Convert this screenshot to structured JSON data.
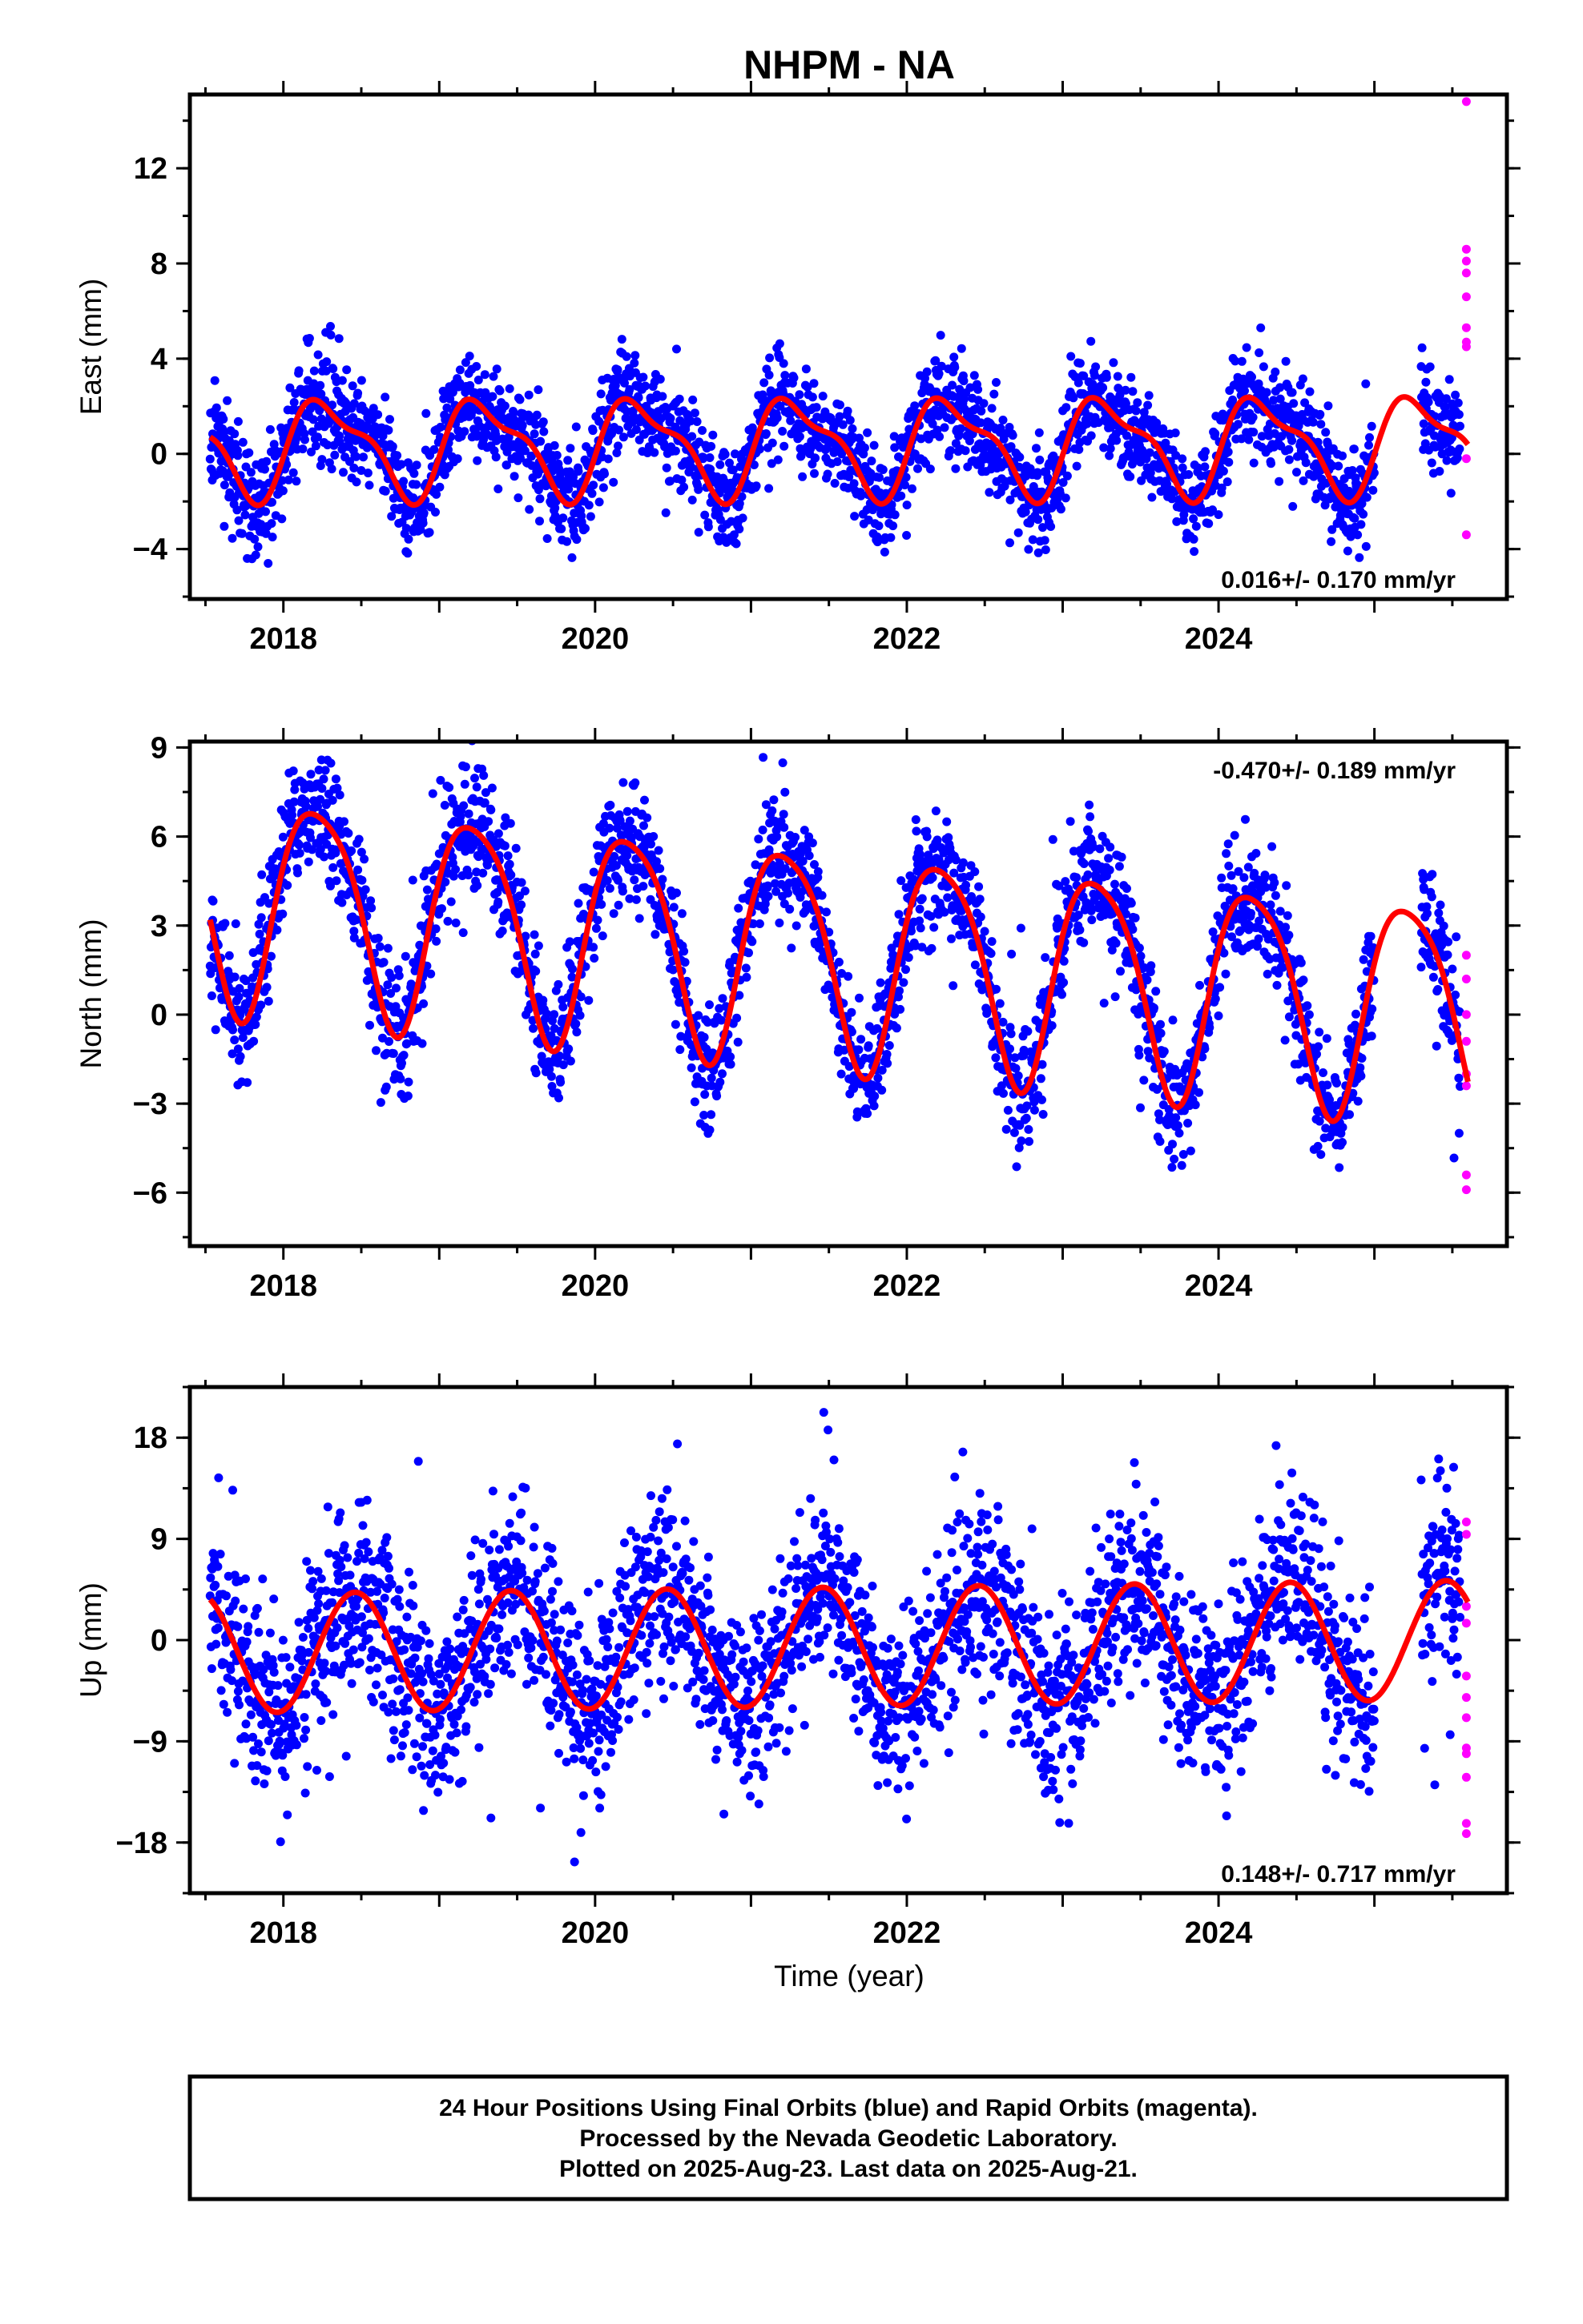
{
  "chart_data": {
    "type": "scatter",
    "title": "NHPM - NA",
    "xlabel": "Time (year)",
    "xlim": [
      2017.4,
      2025.85
    ],
    "xticks": [
      "2018",
      "2020",
      "2022",
      "2024"
    ],
    "grid": false,
    "colors": {
      "final": "#0000ff",
      "rapid": "#ff00ff",
      "model": "#ff0000",
      "frame": "#000000"
    },
    "legend_lines": [
      "24 Hour Positions Using Final Orbits (blue) and Rapid Orbits (magenta).",
      "Processed by the Nevada Geodetic Laboratory.",
      "Plotted on 2025-Aug-23. Last data on 2025-Aug-21."
    ],
    "panels": [
      {
        "component": "east",
        "ylabel": "East (mm)",
        "ylim": [
          -6.1,
          15.1
        ],
        "ytick_values": [
          -4,
          0,
          4,
          8,
          12
        ],
        "ytick_labels": [
          "−4",
          "0",
          "4",
          "8",
          "12"
        ],
        "rate": "0.016+/- 0.170 mm/yr",
        "rate_position": "bottom-right",
        "model": {
          "rate": 0.016,
          "amp_annual": 1.9,
          "phase_annual": 0.29,
          "amp_semiannual": 0.7,
          "phase_semiannual": 0.62,
          "offset": 0.35
        },
        "noise_sd": 1.05,
        "seed": 11,
        "start": 2017.53,
        "end": 2025.55,
        "gap": [
          2025.0,
          2025.3
        ],
        "rapid_points": [
          {
            "x": 2025.59,
            "y": 14.8
          },
          {
            "x": 2025.59,
            "y": 8.6
          },
          {
            "x": 2025.59,
            "y": 8.1
          },
          {
            "x": 2025.59,
            "y": 7.6
          },
          {
            "x": 2025.59,
            "y": 6.6
          },
          {
            "x": 2025.59,
            "y": 5.3
          },
          {
            "x": 2025.59,
            "y": 4.7
          },
          {
            "x": 2025.59,
            "y": 4.5
          },
          {
            "x": 2025.59,
            "y": -0.2
          },
          {
            "x": 2025.59,
            "y": -3.4
          }
        ]
      },
      {
        "component": "north",
        "ylabel": "North (mm)",
        "ylim": [
          -7.8,
          9.2
        ],
        "ytick_values": [
          -6,
          -3,
          0,
          3,
          6,
          9
        ],
        "ytick_labels": [
          "−6",
          "−3",
          "0",
          "3",
          "6",
          "9"
        ],
        "rate": "-0.470+/- 0.189 mm/yr",
        "rate_position": "top-right",
        "model": {
          "rate": -0.47,
          "amp_annual": 3.6,
          "phase_annual": 0.22,
          "amp_semiannual": 0.6,
          "phase_semiannual": 0.5,
          "offset": 2.1
        },
        "noise_sd": 1.0,
        "seed": 23,
        "start": 2017.53,
        "end": 2025.55,
        "gap": [
          2025.0,
          2025.3
        ],
        "rapid_points": [
          {
            "x": 2025.59,
            "y": 2.0
          },
          {
            "x": 2025.59,
            "y": 1.2
          },
          {
            "x": 2025.59,
            "y": 0.0
          },
          {
            "x": 2025.59,
            "y": -0.9
          },
          {
            "x": 2025.59,
            "y": -2.0
          },
          {
            "x": 2025.59,
            "y": -2.4
          },
          {
            "x": 2025.59,
            "y": -5.4
          },
          {
            "x": 2025.59,
            "y": -5.9
          }
        ]
      },
      {
        "component": "up",
        "ylabel": "Up (mm)",
        "ylim": [
          -22.5,
          22.5
        ],
        "ytick_values": [
          -18,
          -9,
          0,
          9,
          18
        ],
        "ytick_labels": [
          "−18",
          "−9",
          "0",
          "9",
          "18"
        ],
        "rate": "0.148+/- 0.717 mm/yr",
        "rate_position": "bottom-right",
        "model": {
          "rate": 0.148,
          "amp_annual": 5.3,
          "phase_annual": 0.46,
          "amp_semiannual": 0.0,
          "phase_semiannual": 0.0,
          "offset": -0.6
        },
        "noise_sd": 4.3,
        "seed": 37,
        "start": 2017.53,
        "end": 2025.55,
        "gap": [
          2025.0,
          2025.3
        ],
        "rapid_points": [
          {
            "x": 2025.59,
            "y": 10.5
          },
          {
            "x": 2025.59,
            "y": 9.4
          },
          {
            "x": 2025.59,
            "y": 3.0
          },
          {
            "x": 2025.59,
            "y": 1.5
          },
          {
            "x": 2025.59,
            "y": -3.2
          },
          {
            "x": 2025.59,
            "y": -5.1
          },
          {
            "x": 2025.59,
            "y": -6.9
          },
          {
            "x": 2025.59,
            "y": -9.6
          },
          {
            "x": 2025.59,
            "y": -10.1
          },
          {
            "x": 2025.59,
            "y": -12.2
          },
          {
            "x": 2025.59,
            "y": -16.3
          },
          {
            "x": 2025.59,
            "y": -17.2
          }
        ]
      }
    ]
  }
}
